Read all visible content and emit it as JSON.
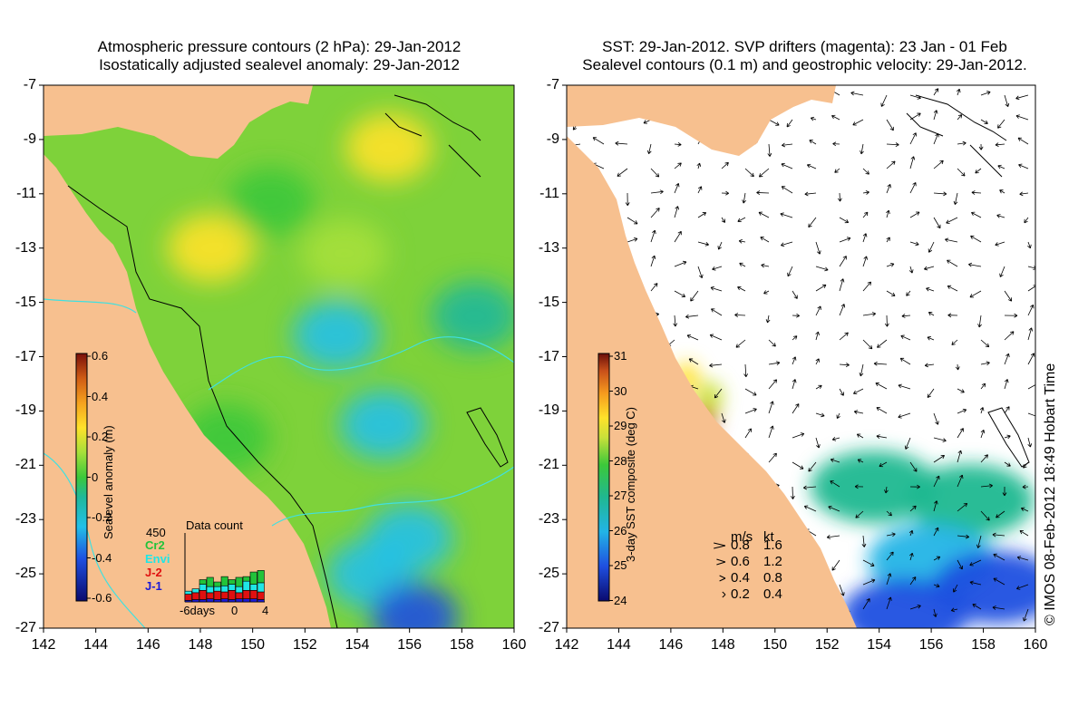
{
  "left_panel": {
    "title_line1": "Atmospheric pressure contours (2 hPa): 29-Jan-2012",
    "title_line2": "Isostatically adjusted sealevel anomaly: 29-Jan-2012",
    "colorbar": {
      "label": "Sealevel anomaly (m)",
      "ticks": [
        "0.6",
        "0.4",
        "0.2",
        "0",
        "-0.2",
        "-0.4",
        "-0.6"
      ],
      "range": [
        -0.6,
        0.6
      ]
    },
    "data_count": {
      "title": "Data count",
      "max_label": "450",
      "x_ticks": [
        "-6days",
        "0",
        "4"
      ],
      "missions": [
        {
          "name": "Cr2",
          "color": "#22c33a"
        },
        {
          "name": "Envi",
          "color": "#1fe6e6"
        },
        {
          "name": "J-2",
          "color": "#e01010"
        },
        {
          "name": "J-1",
          "color": "#1a1ad6"
        }
      ]
    }
  },
  "right_panel": {
    "title_line1": "SST: 29-Jan-2012. SVP drifters (magenta): 23 Jan - 01 Feb",
    "title_line2": "Sealevel contours (0.1 m) and geostrophic velocity: 29-Jan-2012.",
    "colorbar": {
      "label": "3-day SST composite (deg C)",
      "ticks": [
        "31",
        "30",
        "29",
        "28",
        "27",
        "26",
        "25",
        "24"
      ],
      "range": [
        24,
        31
      ]
    },
    "velocity_legend": {
      "header_ms": "m/s",
      "header_kt": "kt",
      "rows": [
        {
          "ms": "0.8",
          "kt": "1.6"
        },
        {
          "ms": "0.6",
          "kt": "1.2"
        },
        {
          "ms": "0.4",
          "kt": "0.8"
        },
        {
          "ms": "0.2",
          "kt": "0.4"
        }
      ]
    },
    "copyright": "© IMOS 08-Feb-2012 18:49 Hobart Time"
  },
  "axes": {
    "x_ticks": [
      "142",
      "144",
      "146",
      "148",
      "150",
      "152",
      "154",
      "156",
      "158",
      "160"
    ],
    "y_ticks": [
      "-7",
      "-9",
      "-11",
      "-13",
      "-15",
      "-17",
      "-19",
      "-21",
      "-23",
      "-25",
      "-27"
    ]
  },
  "chart_data": [
    {
      "type": "heatmap",
      "title": "Atmospheric pressure contours (2 hPa): 29-Jan-2012 / Isostatically adjusted sealevel anomaly: 29-Jan-2012",
      "xlabel": "",
      "ylabel": "",
      "x_range": [
        142,
        160
      ],
      "y_range": [
        -27,
        -7
      ],
      "colorbar_label": "Sealevel anomaly (m)",
      "value_range": [
        -0.6,
        0.6
      ],
      "anomaly_features": [
        {
          "lon": 155.2,
          "lat": -9.3,
          "value": 0.3
        },
        {
          "lon": 148.4,
          "lat": -13.0,
          "value": 0.25
        },
        {
          "lon": 153.5,
          "lat": -13.2,
          "value": 0.2
        },
        {
          "lon": 150.7,
          "lat": -11.3,
          "value": 0.1
        },
        {
          "lon": 153.2,
          "lat": -16.2,
          "value": -0.15
        },
        {
          "lon": 155.0,
          "lat": -19.5,
          "value": -0.15
        },
        {
          "lon": 156.0,
          "lat": -23.7,
          "value": -0.2
        },
        {
          "lon": 154.5,
          "lat": -25.0,
          "value": -0.25
        },
        {
          "lon": 156.2,
          "lat": -26.6,
          "value": -0.3
        },
        {
          "lon": 158.5,
          "lat": -15.5,
          "value": -0.1
        },
        {
          "lon": 149.0,
          "lat": -20.0,
          "value": 0.05
        }
      ]
    },
    {
      "type": "heatmap",
      "title": "SST: 29-Jan-2012. SVP drifters (magenta): 23 Jan - 01 Feb / Sealevel contours (0.1 m) and geostrophic velocity: 29-Jan-2012.",
      "xlabel": "",
      "ylabel": "",
      "x_range": [
        142,
        160
      ],
      "y_range": [
        -27,
        -7
      ],
      "colorbar_label": "3-day SST composite (deg C)",
      "value_range": [
        24,
        31
      ],
      "sst_features": [
        {
          "lon": 147.3,
          "lat": -19.2,
          "value": 30.5
        },
        {
          "lon": 146.6,
          "lat": -17.8,
          "value": 29.5
        },
        {
          "lon": 147.5,
          "lat": -18.5,
          "value": 29.0
        },
        {
          "lon": 153.8,
          "lat": -21.8,
          "value": 27.5
        },
        {
          "lon": 157.5,
          "lat": -22.3,
          "value": 27.3
        },
        {
          "lon": 156.0,
          "lat": -24.5,
          "value": 26.0
        },
        {
          "lon": 158.5,
          "lat": -25.5,
          "value": 25.3
        },
        {
          "lon": 155.0,
          "lat": -26.5,
          "value": 25.5
        }
      ],
      "velocity_scale": [
        {
          "ms": 0.8,
          "kt": 1.6
        },
        {
          "ms": 0.6,
          "kt": 1.2
        },
        {
          "ms": 0.4,
          "kt": 0.8
        },
        {
          "ms": 0.2,
          "kt": 0.4
        }
      ]
    },
    {
      "type": "bar",
      "title": "Data count",
      "xlabel": "",
      "ylabel": "",
      "ylim": [
        0,
        450
      ],
      "categories": [
        "-6",
        "-5",
        "-4",
        "-3",
        "-2",
        "-1",
        "0",
        "1",
        "2",
        "3",
        "4"
      ],
      "series": [
        {
          "name": "J-1",
          "values": [
            10,
            15,
            15,
            20,
            15,
            20,
            15,
            20,
            20,
            20,
            15
          ]
        },
        {
          "name": "J-2",
          "values": [
            40,
            45,
            60,
            40,
            55,
            45,
            60,
            40,
            55,
            55,
            50
          ]
        },
        {
          "name": "Envi",
          "values": [
            20,
            25,
            40,
            40,
            30,
            40,
            40,
            40,
            60,
            40,
            60
          ]
        },
        {
          "name": "Cr2",
          "values": [
            0,
            0,
            30,
            60,
            30,
            60,
            30,
            60,
            30,
            80,
            80
          ]
        }
      ]
    }
  ]
}
